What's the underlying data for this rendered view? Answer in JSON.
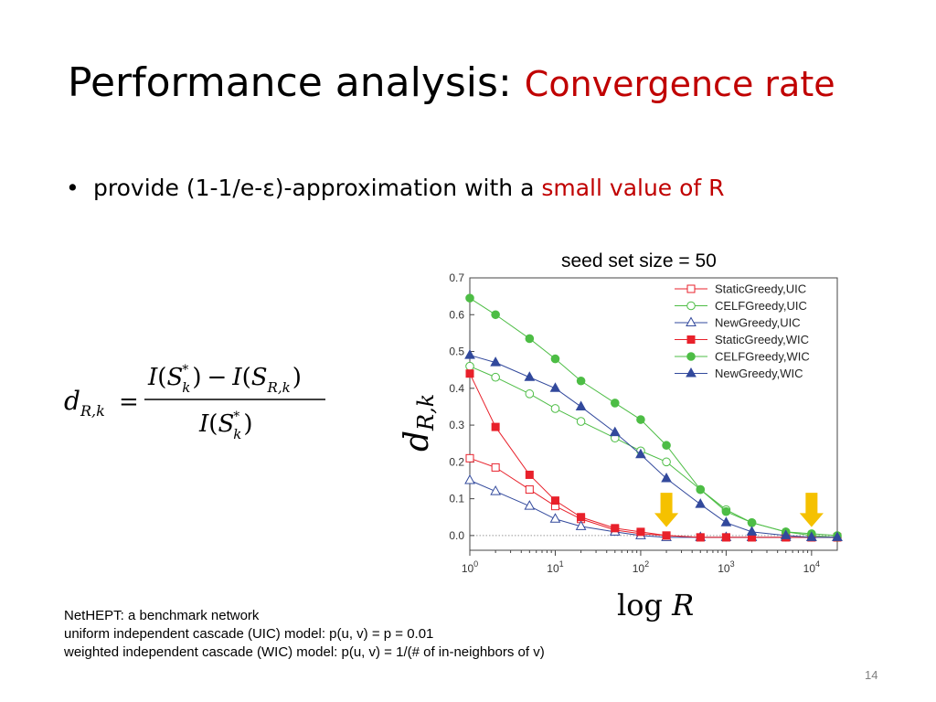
{
  "slide": {
    "title_main": "Performance analysis: ",
    "title_accent": "Convergence rate",
    "bullet_prefix": "provide (1-1/e-ε)-approximation with a ",
    "bullet_accent": "small value of R",
    "formula_lhs": "d",
    "formula_lhs_sub": "R,k",
    "formula_eq": "=",
    "seed_label": "seed set size = 50",
    "xlabel_prefix": "log ",
    "xlabel_var": "R",
    "ylabel_main": "d",
    "ylabel_sub": "R,k",
    "notes": [
      "NetHEPT: a benchmark network",
      "uniform independent cascade (UIC) model: p(u, v) = p = 0.01",
      "weighted independent cascade (WIC) model: p(u, v) = 1/(# of in-neighbors of v)"
    ],
    "page_number": "14"
  },
  "colors": {
    "accent": "#c00000",
    "red": "#e8212b",
    "green": "#4dbd45",
    "blue": "#32499c",
    "arrow": "#f5c100"
  },
  "chart_data": {
    "type": "line",
    "title": "seed set size = 50",
    "x_scale": "log",
    "xlim": [
      1,
      20000
    ],
    "ylim": [
      -0.04,
      0.7
    ],
    "xticks": [
      1,
      10,
      100,
      1000,
      10000
    ],
    "xtick_labels": [
      {
        "base": "10",
        "exp": "0"
      },
      {
        "base": "10",
        "exp": "1"
      },
      {
        "base": "10",
        "exp": "2"
      },
      {
        "base": "10",
        "exp": "3"
      },
      {
        "base": "10",
        "exp": "4"
      }
    ],
    "yticks": [
      0.0,
      0.1,
      0.2,
      0.3,
      0.4,
      0.5,
      0.6,
      0.7
    ],
    "ytick_labels": [
      "0.0",
      "0.1",
      "0.2",
      "0.3",
      "0.4",
      "0.5",
      "0.6",
      "0.7"
    ],
    "legend_position": "top-right",
    "reference_line": 0.0,
    "x": [
      1,
      2,
      5,
      10,
      20,
      50,
      100,
      200,
      500,
      1000,
      2000,
      5000,
      10000,
      20000
    ],
    "series": [
      {
        "name": "StaticGreedy,UIC",
        "color": "#e8212b",
        "marker": "square",
        "filled": false,
        "values": [
          0.21,
          0.185,
          0.125,
          0.08,
          0.045,
          0.015,
          0.005,
          0.0,
          -0.005,
          -0.005,
          -0.005,
          -0.005,
          -0.005,
          -0.005
        ]
      },
      {
        "name": "CELFGreedy,UIC",
        "color": "#4dbd45",
        "marker": "circle",
        "filled": false,
        "values": [
          0.46,
          0.43,
          0.385,
          0.345,
          0.31,
          0.265,
          0.23,
          0.2,
          0.125,
          0.07,
          0.035,
          0.01,
          0.0,
          -0.005
        ]
      },
      {
        "name": "NewGreedy,UIC",
        "color": "#32499c",
        "marker": "triangle",
        "filled": false,
        "values": [
          0.15,
          0.12,
          0.08,
          0.045,
          0.025,
          0.01,
          0.0,
          -0.005,
          -0.005,
          -0.005,
          -0.005,
          -0.005,
          -0.005,
          -0.005
        ]
      },
      {
        "name": "StaticGreedy,WIC",
        "color": "#e8212b",
        "marker": "square",
        "filled": true,
        "values": [
          0.44,
          0.295,
          0.165,
          0.095,
          0.05,
          0.02,
          0.01,
          0.0,
          -0.005,
          -0.005,
          -0.005,
          -0.005,
          -0.005,
          -0.005
        ]
      },
      {
        "name": "CELFGreedy,WIC",
        "color": "#4dbd45",
        "marker": "circle",
        "filled": true,
        "values": [
          0.645,
          0.6,
          0.535,
          0.48,
          0.42,
          0.36,
          0.315,
          0.245,
          0.125,
          0.065,
          0.035,
          0.01,
          0.005,
          0.0
        ]
      },
      {
        "name": "NewGreedy,WIC",
        "color": "#32499c",
        "marker": "triangle",
        "filled": true,
        "values": [
          0.49,
          0.47,
          0.43,
          0.4,
          0.35,
          0.28,
          0.22,
          0.155,
          0.085,
          0.035,
          0.01,
          0.0,
          -0.005,
          -0.005
        ]
      }
    ],
    "annotations": [
      {
        "type": "down-arrow",
        "x": 200,
        "color": "#f5c100"
      },
      {
        "type": "down-arrow",
        "x": 10000,
        "color": "#f5c100"
      }
    ]
  }
}
